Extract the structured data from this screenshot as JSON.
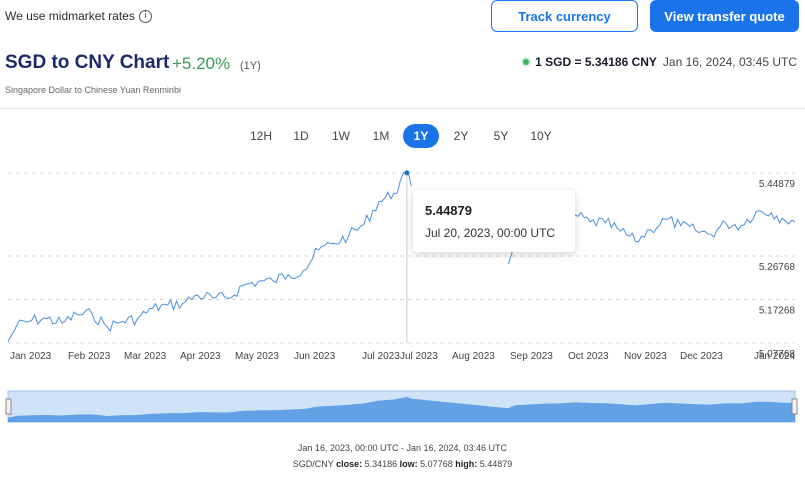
{
  "header": {
    "note": "We use midmarket rates",
    "track_label": "Track currency",
    "quote_label": "View transfer quote"
  },
  "title": "SGD to CNY Chart",
  "change": "+5.20%",
  "period": "(1Y)",
  "subtitle": "Singapore Dollar to Chinese Yuan Renminbi",
  "rate": {
    "value": "1 SGD = 5.34186 CNY",
    "time": "Jan 16, 2024, 03:45 UTC"
  },
  "ranges": [
    "12H",
    "1D",
    "1W",
    "1M",
    "1Y",
    "2Y",
    "5Y",
    "10Y"
  ],
  "active_range": "1Y",
  "tooltip": {
    "value": "5.44879",
    "date": "Jul 20, 2023, 00:00 UTC"
  },
  "footer": {
    "range": "Jan 16, 2023, 00:00 UTC - Jan 16, 2024, 03:46 UTC",
    "pair": "SGD/CNY",
    "close_label": "close:",
    "close": "5.34186",
    "low_label": "low:",
    "low": "5.07768",
    "high_label": "high:",
    "high": "5.44879"
  },
  "colors": {
    "accent": "#1a73e8",
    "line": "#4a90d9",
    "positive": "#3b9a57"
  },
  "chart_data": {
    "type": "line",
    "ylim": [
      5.07768,
      5.44879
    ],
    "y_ticks": [
      "5.44879",
      "5.26768",
      "5.17268",
      "5.07768"
    ],
    "x_ticks": [
      "Jan 2023",
      "Feb 2023",
      "Mar 2023",
      "Apr 2023",
      "May 2023",
      "Jun 2023",
      "Jul 2023",
      "Jul 2023",
      "Aug 2023",
      "Sep 2023",
      "Oct 2023",
      "Nov 2023",
      "Dec 2023",
      "Jan 2024"
    ],
    "series": [
      {
        "x": [
          "2023-01-16",
          "2023-01-20",
          "2023-01-27",
          "2023-02-03",
          "2023-02-10",
          "2023-02-17",
          "2023-02-24",
          "2023-03-03",
          "2023-03-10",
          "2023-03-17",
          "2023-03-24",
          "2023-03-31",
          "2023-04-07",
          "2023-04-14",
          "2023-04-21",
          "2023-04-28",
          "2023-05-05",
          "2023-05-12",
          "2023-05-19",
          "2023-05-26",
          "2023-06-02",
          "2023-06-09",
          "2023-06-16",
          "2023-06-23",
          "2023-06-30",
          "2023-07-07",
          "2023-07-14",
          "2023-07-20",
          "2023-07-22",
          "2023-09-05",
          "2023-09-08",
          "2023-09-15",
          "2023-09-22",
          "2023-09-29",
          "2023-10-06",
          "2023-10-13",
          "2023-10-20",
          "2023-10-27",
          "2023-11-03",
          "2023-11-10",
          "2023-11-17",
          "2023-11-24",
          "2023-12-01",
          "2023-12-08",
          "2023-12-15",
          "2023-12-22",
          "2023-12-29",
          "2024-01-05",
          "2024-01-10",
          "2024-01-16"
        ],
        "values": [
          5.081,
          5.115,
          5.127,
          5.131,
          5.121,
          5.14,
          5.141,
          5.113,
          5.125,
          5.131,
          5.153,
          5.16,
          5.164,
          5.182,
          5.176,
          5.175,
          5.203,
          5.212,
          5.213,
          5.227,
          5.236,
          5.281,
          5.295,
          5.312,
          5.336,
          5.386,
          5.404,
          5.449,
          5.42,
          5.25,
          5.301,
          5.318,
          5.332,
          5.335,
          5.357,
          5.342,
          5.34,
          5.322,
          5.3,
          5.325,
          5.348,
          5.334,
          5.323,
          5.315,
          5.339,
          5.334,
          5.365,
          5.362,
          5.35,
          5.342
        ]
      }
    ]
  }
}
